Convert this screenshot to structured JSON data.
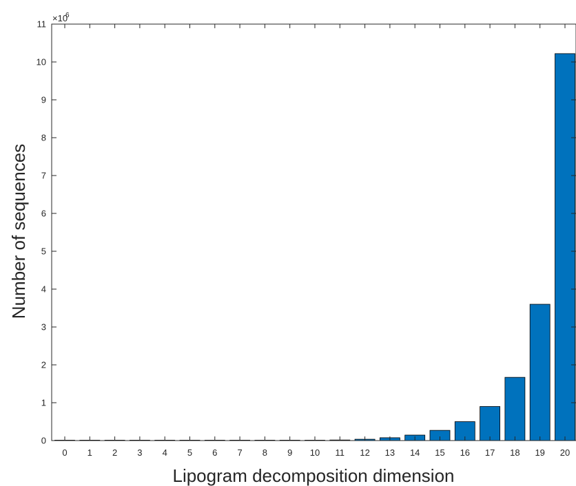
{
  "chart_data": {
    "type": "bar",
    "title": "",
    "xlabel": "Lipogram decomposition dimension",
    "ylabel": "Number of sequences",
    "y_multiplier": "×10",
    "y_exponent": "6",
    "categories": [
      "0",
      "1",
      "2",
      "3",
      "4",
      "5",
      "6",
      "7",
      "8",
      "9",
      "10",
      "11",
      "12",
      "13",
      "14",
      "15",
      "16",
      "17",
      "18",
      "19",
      "20"
    ],
    "values": [
      0,
      0,
      0,
      0,
      0,
      0,
      0,
      0,
      0,
      0,
      0.005,
      0.015,
      0.035,
      0.075,
      0.145,
      0.27,
      0.5,
      0.9,
      1.67,
      3.6,
      10.22
    ],
    "ylim": [
      0,
      11
    ],
    "yticks": [
      "0",
      "1",
      "2",
      "3",
      "4",
      "5",
      "6",
      "7",
      "8",
      "9",
      "10",
      "11"
    ],
    "grid": false,
    "bar_color": "#0072BD",
    "bar_edge_color": "#000000"
  }
}
